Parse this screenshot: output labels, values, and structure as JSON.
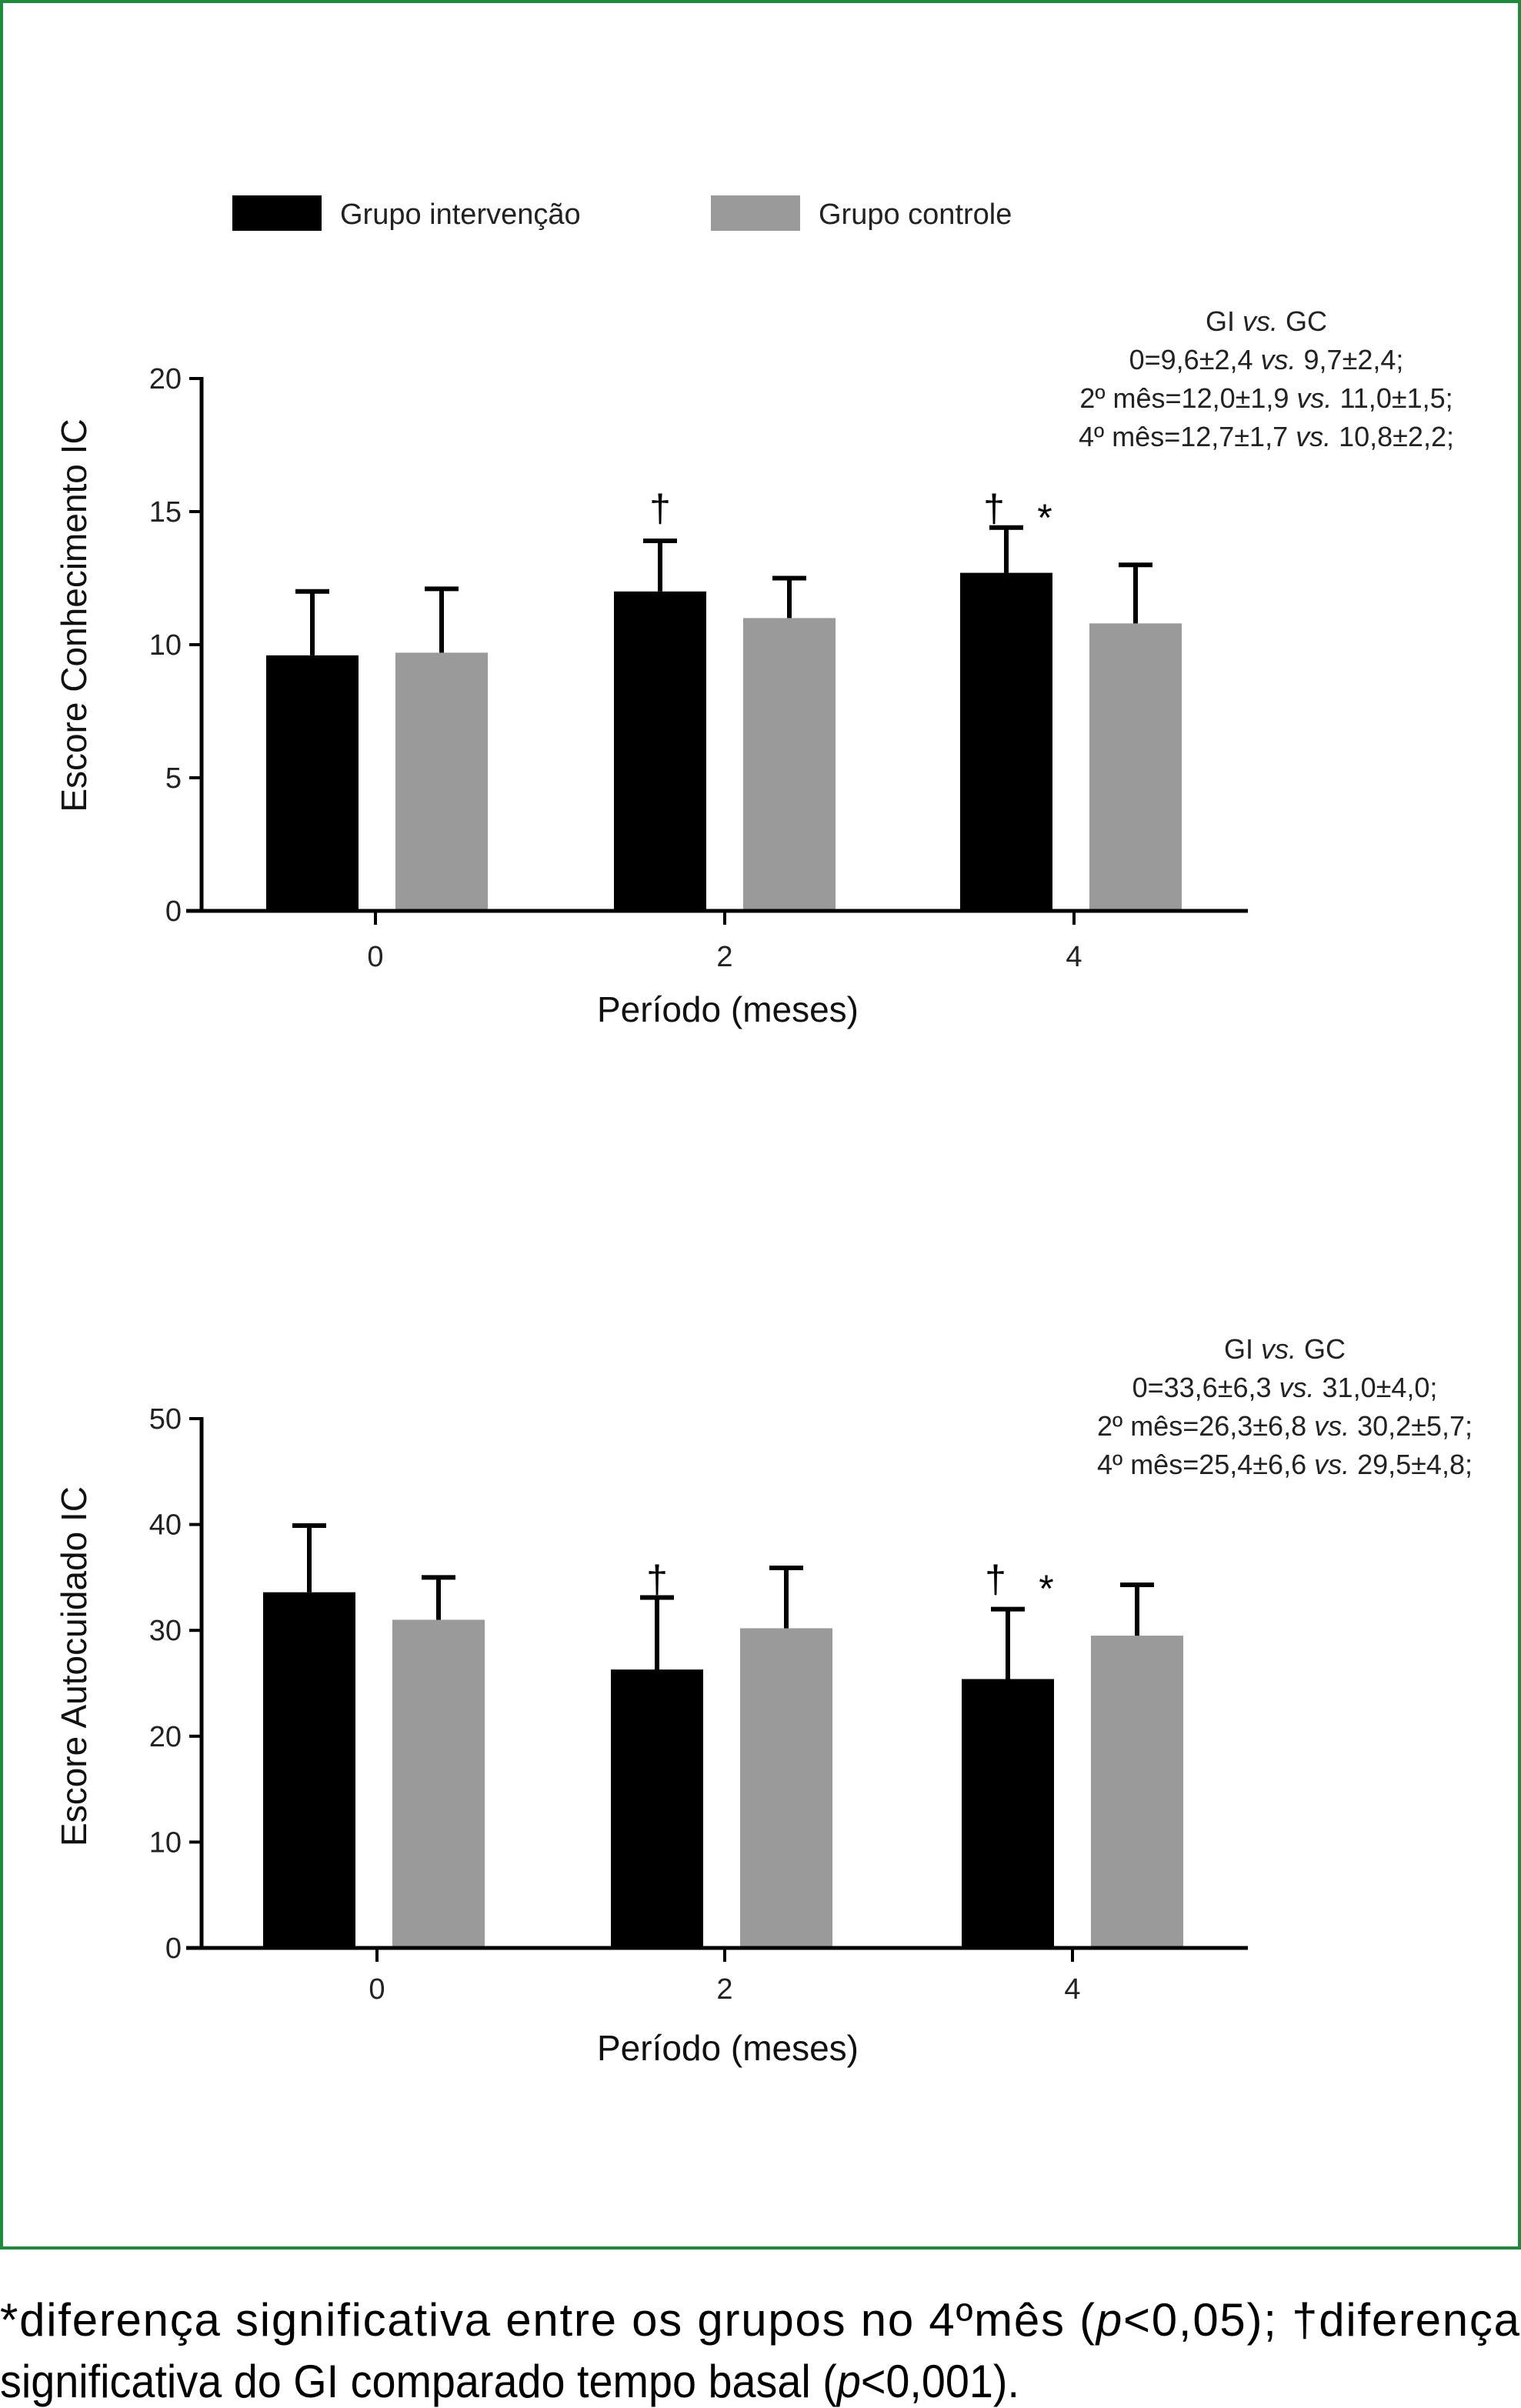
{
  "colors": {
    "frame": "#1e8a3c",
    "intervention": "#000000",
    "control": "#9a9a9a"
  },
  "legend": [
    {
      "label": "Grupo intervenção",
      "color": "#000000"
    },
    {
      "label": "Grupo controle",
      "color": "#9a9a9a"
    }
  ],
  "chart_data": [
    {
      "type": "bar",
      "categories": [
        "0",
        "2",
        "4"
      ],
      "xlabel": "Período (meses)",
      "ylabel": "Escore Conhecimento IC",
      "ylim": [
        0,
        20
      ],
      "yticks": [
        "0",
        "5",
        "10",
        "15",
        "20"
      ],
      "series": [
        {
          "name": "Grupo intervenção",
          "values": [
            9.6,
            12.0,
            12.7
          ],
          "sd": [
            2.4,
            1.9,
            1.7
          ]
        },
        {
          "name": "Grupo controle",
          "values": [
            9.7,
            11.0,
            10.8
          ],
          "sd": [
            2.4,
            1.5,
            2.2
          ]
        }
      ],
      "significance": [
        {
          "category": "2",
          "marks": [
            "†"
          ]
        },
        {
          "category": "4",
          "marks": [
            "†",
            "*"
          ]
        }
      ],
      "annotation": {
        "title": {
          "a": "GI ",
          "vs": "vs.",
          "b": " GC"
        },
        "lines": [
          {
            "a": "0=9,6±2,4 ",
            "vs": "vs.",
            "b": " 9,7±2,4;"
          },
          {
            "a": "2º mês=12,0±1,9 ",
            "vs": "vs.",
            "b": " 11,0±1,5;"
          },
          {
            "a": "4º mês=12,7±1,7 ",
            "vs": "vs.",
            "b": " 10,8±2,2;"
          }
        ]
      }
    },
    {
      "type": "bar",
      "categories": [
        "0",
        "2",
        "4"
      ],
      "xlabel": "Período (meses)",
      "ylabel": "Escore Autocuidado IC",
      "ylim": [
        0,
        50
      ],
      "yticks": [
        "0",
        "10",
        "20",
        "30",
        "40",
        "50"
      ],
      "series": [
        {
          "name": "Grupo intervenção",
          "values": [
            33.6,
            26.3,
            25.4
          ],
          "sd": [
            6.3,
            6.8,
            6.6
          ]
        },
        {
          "name": "Grupo controle",
          "values": [
            31.0,
            30.2,
            29.5
          ],
          "sd": [
            4.0,
            5.7,
            4.8
          ]
        }
      ],
      "significance": [
        {
          "category": "2",
          "marks": [
            "†"
          ]
        },
        {
          "category": "4",
          "marks": [
            "†",
            "*"
          ]
        }
      ],
      "annotation": {
        "title": {
          "a": "GI ",
          "vs": "vs.",
          "b": " GC"
        },
        "lines": [
          {
            "a": "0=33,6±6,3 ",
            "vs": "vs.",
            "b": " 31,0±4,0;"
          },
          {
            "a": "2º mês=26,3±6,8 ",
            "vs": "vs.",
            "b": " 30,2±5,7;"
          },
          {
            "a": "4º mês=25,4±6,6 ",
            "vs": "vs.",
            "b": " 29,5±4,8;"
          }
        ]
      }
    }
  ],
  "caption": {
    "line1": {
      "a": "*diferença significativa entre os grupos no 4ºmês (",
      "p": "p",
      "b": "<0,05); †diferença"
    },
    "line2": {
      "a": "significativa do GI comparado tempo basal (",
      "p": "p",
      "b": "<0,001)."
    }
  }
}
